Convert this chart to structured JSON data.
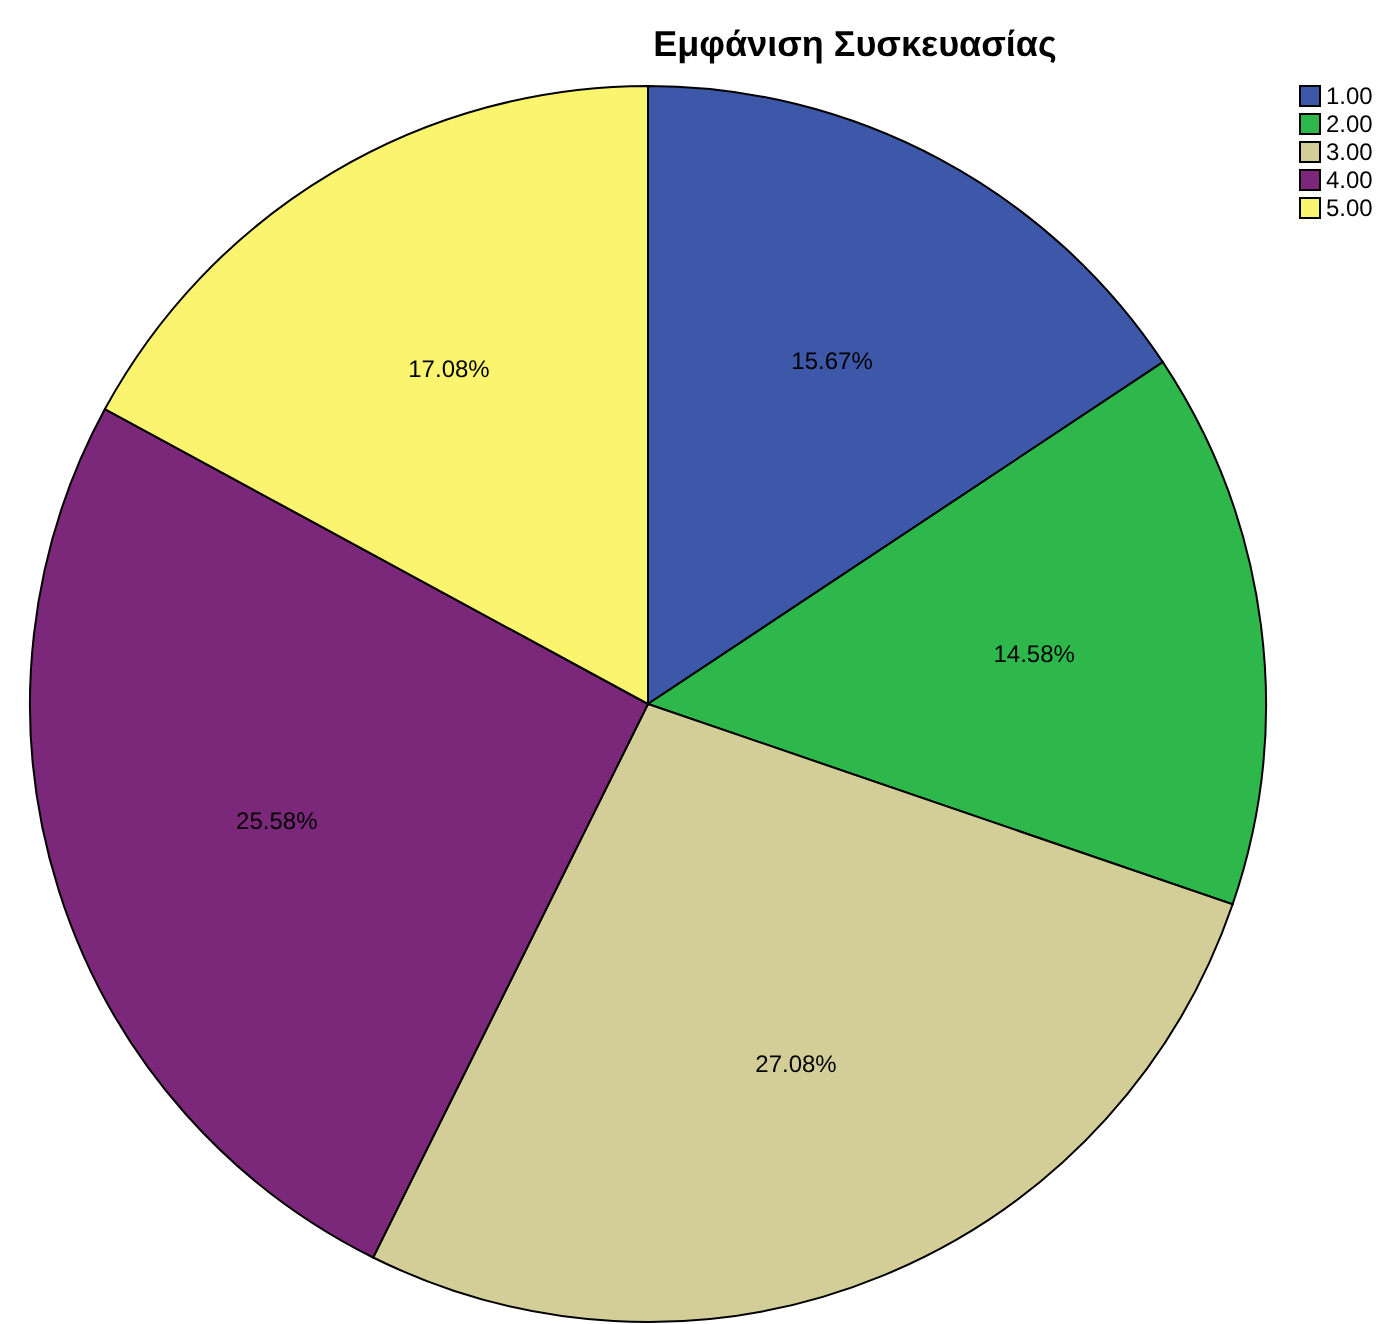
{
  "chart_data": {
    "type": "pie",
    "title": "Εμφάνιση Συσκευασίας",
    "categories": [
      "1.00",
      "2.00",
      "3.00",
      "4.00",
      "5.00"
    ],
    "values": [
      15.67,
      14.58,
      27.08,
      25.58,
      17.08
    ],
    "value_labels": [
      "15.67%",
      "14.58%",
      "27.08%",
      "25.58%",
      "17.08%"
    ],
    "colors": [
      "#3d57a9",
      "#2eb84c",
      "#d3ce98",
      "#7b287a",
      "#fbf46f"
    ],
    "legend": "top right"
  }
}
